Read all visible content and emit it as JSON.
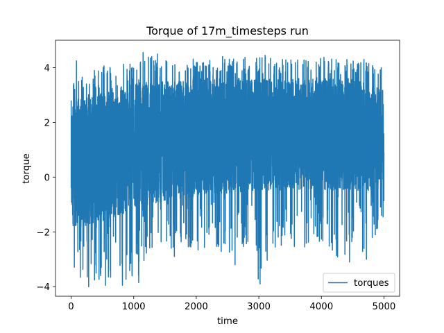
{
  "chart_data": {
    "type": "line",
    "title": "Torque of 17m_timesteps run",
    "xlabel": "time",
    "ylabel": "torque",
    "xlim": [
      -250,
      5250
    ],
    "ylim": [
      -4.35,
      5.0
    ],
    "x_ticks": [
      0,
      1000,
      2000,
      3000,
      4000,
      5000
    ],
    "y_ticks": [
      -4,
      -2,
      0,
      2,
      4
    ],
    "grid": false,
    "legend": {
      "location": "lower-right",
      "entries": [
        "torques"
      ]
    },
    "series": [
      {
        "name": "torques",
        "color": "#1f77b4",
        "n_points": 5001,
        "x_range": [
          0,
          5000
        ],
        "envelope": {
          "x": [
            0,
            250,
            500,
            750,
            1000,
            1250,
            1500,
            1750,
            2000,
            2250,
            2500,
            2750,
            3000,
            3250,
            3500,
            3750,
            4000,
            4250,
            4500,
            4750,
            5000
          ],
          "upper": [
            3.6,
            3.8,
            4.1,
            4.2,
            4.2,
            4.5,
            4.3,
            4.3,
            4.4,
            4.3,
            4.3,
            4.4,
            4.4,
            4.4,
            4.4,
            4.3,
            4.4,
            4.3,
            4.3,
            4.2,
            4.0
          ],
          "lower": [
            -3.2,
            -4.0,
            -3.9,
            -3.6,
            -3.9,
            -3.1,
            -2.6,
            -2.8,
            -2.7,
            -2.7,
            -2.8,
            -2.5,
            -3.9,
            -2.6,
            -2.6,
            -2.6,
            -2.5,
            -3.1,
            -2.8,
            -2.7,
            -1.5
          ],
          "band_upper": [
            2.8,
            3.0,
            3.2,
            3.3,
            3.4,
            3.5,
            3.5,
            3.5,
            3.6,
            3.6,
            3.6,
            3.6,
            3.6,
            3.6,
            3.6,
            3.6,
            3.6,
            3.6,
            3.6,
            3.5,
            3.2
          ],
          "band_lower": [
            -1.8,
            -1.8,
            -1.6,
            -1.4,
            -1.2,
            -1.0,
            -0.9,
            -0.8,
            -0.7,
            -0.6,
            -0.6,
            -0.5,
            -0.5,
            -0.5,
            -0.5,
            -0.5,
            -0.5,
            -0.5,
            -0.5,
            -0.5,
            -0.6
          ]
        },
        "spikes": [
          {
            "x": 280,
            "y": -4.0
          },
          {
            "x": 550,
            "y": -3.95
          },
          {
            "x": 820,
            "y": -3.95
          },
          {
            "x": 1080,
            "y": -3.85
          },
          {
            "x": 1150,
            "y": 4.55
          },
          {
            "x": 1380,
            "y": 4.5
          },
          {
            "x": 1650,
            "y": -2.9
          },
          {
            "x": 2420,
            "y": 4.4
          },
          {
            "x": 2620,
            "y": -3.2
          },
          {
            "x": 3020,
            "y": -3.9
          },
          {
            "x": 3100,
            "y": 4.45
          },
          {
            "x": 4450,
            "y": -3.1
          },
          {
            "x": 4680,
            "y": 4.3
          },
          {
            "x": 4720,
            "y": -3.0
          },
          {
            "x": 85,
            "y": 4.25
          }
        ]
      }
    ]
  }
}
